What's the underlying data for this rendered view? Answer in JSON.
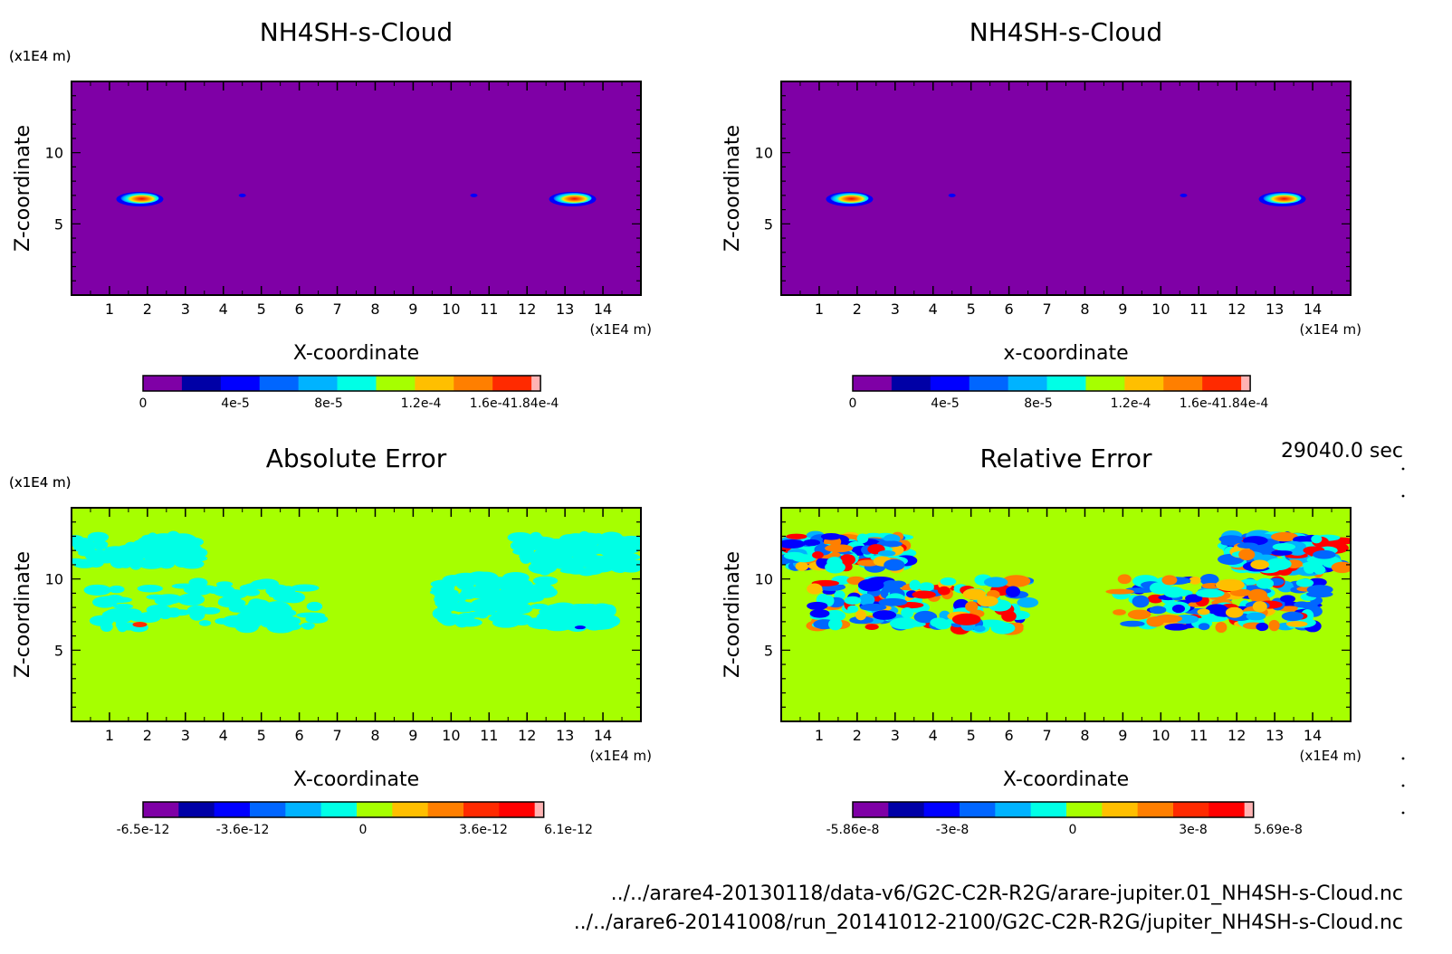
{
  "time_label": "29040.0 sec",
  "footer": {
    "file1": "../../arare4-20130118/data-v6/G2C-C2R-R2G/arare-jupiter.01_NH4SH-s-Cloud.nc",
    "file2": "../../arare6-20141008/run_20141012-2100/G2C-C2R-R2G/jupiter_NH4SH-s-Cloud.nc"
  },
  "colors": {
    "background": "#a6ff00",
    "cloud_background": "#7f00a6",
    "levels": [
      "#7f00a6",
      "#0000a6",
      "#0000ff",
      "#0066ff",
      "#00b3ff",
      "#00ffe6",
      "#a6ff00",
      "#ffbf00",
      "#ff7f00",
      "#ff2a00",
      "#ff0000",
      "#ffb3b3"
    ]
  },
  "chart_data": [
    {
      "type": "heatmap",
      "title": "NH4SH-s-Cloud",
      "xlabel": "X-coordinate",
      "ylabel": "Z-coordinate",
      "xunit": "(x1E4 m)",
      "yunit": "(x1E4 m)",
      "xticks": [
        "1",
        "2",
        "3",
        "4",
        "5",
        "6",
        "7",
        "8",
        "9",
        "10",
        "11",
        "12",
        "13",
        "14"
      ],
      "yticks": [
        "5",
        "10"
      ],
      "xlim": [
        0,
        15
      ],
      "ylim": [
        0,
        15
      ],
      "colorbar_labels": [
        "0",
        "4e-5",
        "8e-5",
        "1.2e-4",
        "1.6e-41.84e-4"
      ],
      "features": [
        {
          "x": 1.8,
          "z": 6.8,
          "kind": "cloud"
        },
        {
          "x": 13.2,
          "z": 6.8,
          "kind": "cloud"
        },
        {
          "x": 4.5,
          "z": 7.0,
          "kind": "speck"
        },
        {
          "x": 10.6,
          "z": 7.0,
          "kind": "speck"
        }
      ]
    },
    {
      "type": "heatmap",
      "title": "NH4SH-s-Cloud",
      "xlabel": "x-coordinate",
      "ylabel": "Z-coordinate",
      "xunit": "(x1E4 m)",
      "yunit": "(x1E4 m)",
      "xticks": [
        "1",
        "2",
        "3",
        "4",
        "5",
        "6",
        "7",
        "8",
        "9",
        "10",
        "11",
        "12",
        "13",
        "14"
      ],
      "yticks": [
        "5",
        "10"
      ],
      "xlim": [
        0,
        15
      ],
      "ylim": [
        0,
        15
      ],
      "colorbar_labels": [
        "0",
        "4e-5",
        "8e-5",
        "1.2e-4",
        "1.6e-41.84e-4"
      ],
      "features": [
        {
          "x": 1.8,
          "z": 6.8,
          "kind": "cloud"
        },
        {
          "x": 13.2,
          "z": 6.8,
          "kind": "cloud"
        },
        {
          "x": 4.5,
          "z": 7.0,
          "kind": "speck"
        },
        {
          "x": 10.6,
          "z": 7.0,
          "kind": "speck"
        }
      ]
    },
    {
      "type": "heatmap",
      "title": "Absolute Error",
      "xlabel": "X-coordinate",
      "ylabel": "Z-coordinate",
      "xunit": "(x1E4 m)",
      "yunit": "(x1E4 m)",
      "xticks": [
        "1",
        "2",
        "3",
        "4",
        "5",
        "6",
        "7",
        "8",
        "9",
        "10",
        "11",
        "12",
        "13",
        "14"
      ],
      "yticks": [
        "5",
        "10"
      ],
      "xlim": [
        0,
        15
      ],
      "ylim": [
        0,
        15
      ],
      "colorbar_labels": [
        "-6.5e-12",
        "-3.6e-12",
        "0",
        "3.6e-12",
        "6.1e-12"
      ],
      "regions": [
        {
          "x0": 0.1,
          "x1": 3.3,
          "z0": 11.0,
          "z1": 13.0
        },
        {
          "x0": 0.6,
          "x1": 6.5,
          "z0": 6.5,
          "z1": 9.8
        },
        {
          "x0": 9.7,
          "x1": 12.6,
          "z0": 6.8,
          "z1": 10.2
        },
        {
          "x0": 11.8,
          "x1": 14.8,
          "z0": 10.5,
          "z1": 13.0
        },
        {
          "x0": 12.6,
          "x1": 14.2,
          "z0": 6.6,
          "z1": 8.0
        }
      ]
    },
    {
      "type": "heatmap",
      "title": "Relative Error",
      "xlabel": "X-coordinate",
      "ylabel": "Z-coordinate",
      "xunit": "(x1E4 m)",
      "yunit": "(x1E4 m)",
      "xticks": [
        "1",
        "2",
        "3",
        "4",
        "5",
        "6",
        "7",
        "8",
        "9",
        "10",
        "11",
        "12",
        "13",
        "14"
      ],
      "yticks": [
        "5",
        "10"
      ],
      "xlim": [
        0,
        15
      ],
      "ylim": [
        0,
        15
      ],
      "colorbar_labels": [
        "-5.86e-8",
        "-3e-8",
        "0",
        "3e-8",
        "5.69e-8"
      ],
      "regions": [
        {
          "x0": 0.1,
          "x1": 3.3,
          "z0": 10.8,
          "z1": 13.0
        },
        {
          "x0": 0.8,
          "x1": 6.5,
          "z0": 6.5,
          "z1": 10.0
        },
        {
          "x0": 8.9,
          "x1": 14.2,
          "z0": 6.6,
          "z1": 10.0
        },
        {
          "x0": 11.8,
          "x1": 14.8,
          "z0": 10.5,
          "z1": 13.0
        }
      ]
    }
  ]
}
